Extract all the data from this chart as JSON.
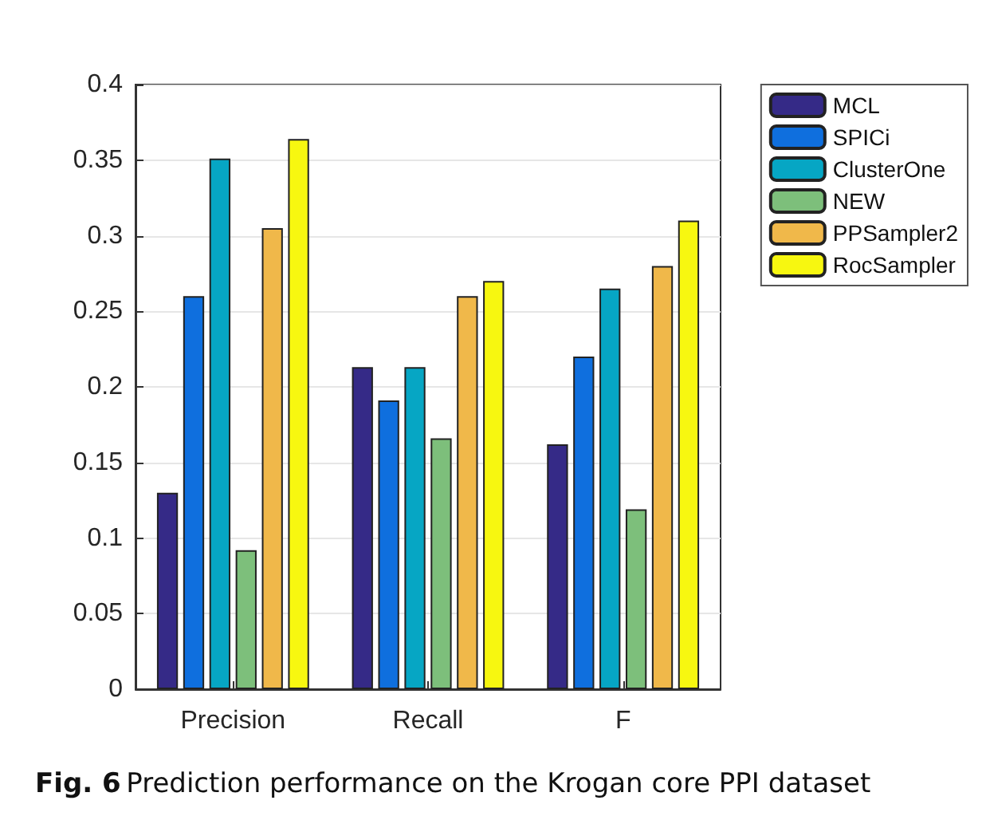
{
  "chart_data": {
    "type": "bar",
    "categories": [
      "Precision",
      "Recall",
      "F"
    ],
    "series": [
      {
        "name": "MCL",
        "color": "#352a87",
        "values": [
          0.13,
          0.213,
          0.162
        ]
      },
      {
        "name": "SPICi",
        "color": "#0f6fde",
        "values": [
          0.26,
          0.191,
          0.22
        ]
      },
      {
        "name": "ClusterOne",
        "color": "#06a6c4",
        "values": [
          0.351,
          0.213,
          0.265
        ]
      },
      {
        "name": "NEW",
        "color": "#7dbf7b",
        "values": [
          0.092,
          0.166,
          0.119
        ]
      },
      {
        "name": "PPSampler2",
        "color": "#f0b84a",
        "values": [
          0.305,
          0.26,
          0.28
        ]
      },
      {
        "name": "RocSampler",
        "color": "#f7f710",
        "values": [
          0.364,
          0.27,
          0.31
        ]
      }
    ],
    "ylim": [
      0,
      0.4
    ],
    "yticks": [
      0,
      0.05,
      0.1,
      0.15,
      0.2,
      0.25,
      0.3,
      0.35,
      0.4
    ],
    "grid": "y",
    "legend": "top right",
    "annotations": [
      "Fig. 6 Prediction performance on the Krogan core PPI dataset"
    ]
  }
}
